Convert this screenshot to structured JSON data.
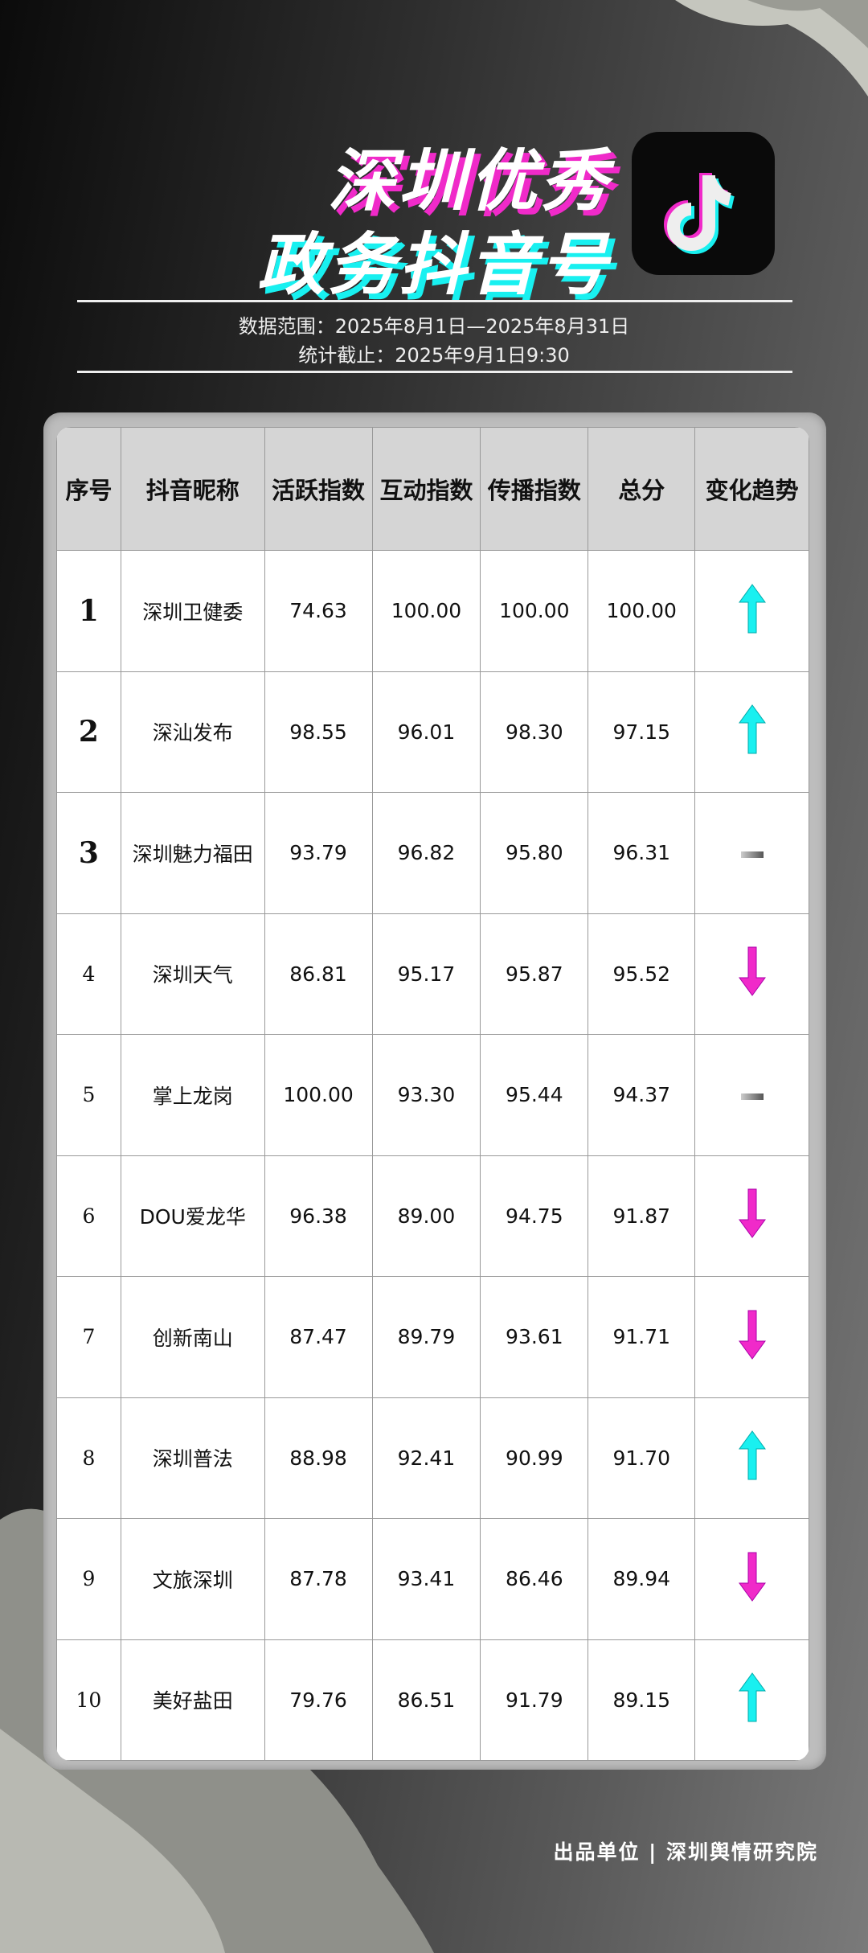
{
  "title": {
    "line1": "深圳优秀",
    "line2": "政务抖音号"
  },
  "logo_icon": "tiktok-note-icon",
  "meta": {
    "range": "数据范围：2025年8月1日—2025年8月31日",
    "cutoff": "统计截止：2025年9月1日9:30"
  },
  "colors": {
    "up": "#19f0f0",
    "down": "#f02ac9",
    "flat": "#777777"
  },
  "table": {
    "headers": [
      "序号",
      "抖音昵称",
      "活跃指数",
      "互动指数",
      "传播指数",
      "总分",
      "变化趋势"
    ],
    "rows": [
      {
        "rank": "1",
        "name": "深圳卫健委",
        "active": "74.63",
        "interact": "100.00",
        "spread": "100.00",
        "total": "100.00",
        "trend": "up"
      },
      {
        "rank": "2",
        "name": "深汕发布",
        "active": "98.55",
        "interact": "96.01",
        "spread": "98.30",
        "total": "97.15",
        "trend": "up"
      },
      {
        "rank": "3",
        "name": "深圳魅力福田",
        "active": "93.79",
        "interact": "96.82",
        "spread": "95.80",
        "total": "96.31",
        "trend": "flat"
      },
      {
        "rank": "4",
        "name": "深圳天气",
        "active": "86.81",
        "interact": "95.17",
        "spread": "95.87",
        "total": "95.52",
        "trend": "down"
      },
      {
        "rank": "5",
        "name": "掌上龙岗",
        "active": "100.00",
        "interact": "93.30",
        "spread": "95.44",
        "total": "94.37",
        "trend": "flat"
      },
      {
        "rank": "6",
        "name": "DOU爱龙华",
        "active": "96.38",
        "interact": "89.00",
        "spread": "94.75",
        "total": "91.87",
        "trend": "down"
      },
      {
        "rank": "7",
        "name": "创新南山",
        "active": "87.47",
        "interact": "89.79",
        "spread": "93.61",
        "total": "91.71",
        "trend": "down"
      },
      {
        "rank": "8",
        "name": "深圳普法",
        "active": "88.98",
        "interact": "92.41",
        "spread": "90.99",
        "total": "91.70",
        "trend": "up"
      },
      {
        "rank": "9",
        "name": "文旅深圳",
        "active": "87.78",
        "interact": "93.41",
        "spread": "86.46",
        "total": "89.94",
        "trend": "down"
      },
      {
        "rank": "10",
        "name": "美好盐田",
        "active": "79.76",
        "interact": "86.51",
        "spread": "91.79",
        "total": "89.15",
        "trend": "up"
      }
    ]
  },
  "footer": "出品单位 | 深圳舆情研究院"
}
